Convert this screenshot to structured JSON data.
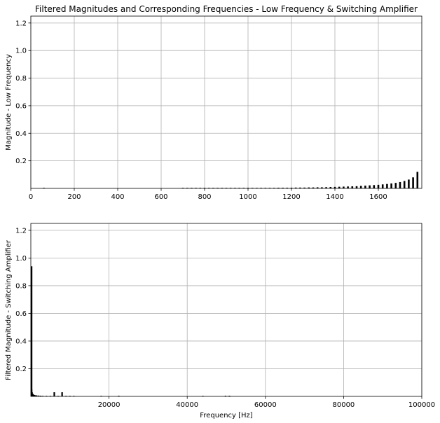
{
  "chart_data": [
    {
      "type": "bar",
      "title": "Filtered Magnitudes and Corresponding Frequencies - Low Frequency & Switching Amplifier",
      "xlabel": "",
      "ylabel": "Magnitude - Low Frequency",
      "xlim": [
        0,
        1800
      ],
      "ylim": [
        0,
        1.25
      ],
      "xticks": [
        0,
        200,
        400,
        600,
        800,
        1000,
        1200,
        1400,
        1600
      ],
      "xtick_labels": [
        "0",
        "200",
        "400",
        "600",
        "800",
        "1000",
        "1200",
        "1400",
        "1600"
      ],
      "yticks": [
        0.2,
        0.4,
        0.6,
        0.8,
        1.0,
        1.2
      ],
      "ytick_labels": [
        "0.2",
        "0.4",
        "0.6",
        "0.8",
        "1.0",
        "1.2"
      ],
      "grid": true,
      "color": "#000000",
      "x": [
        60,
        700,
        720,
        740,
        760,
        780,
        800,
        820,
        840,
        860,
        880,
        900,
        920,
        940,
        960,
        980,
        1000,
        1020,
        1040,
        1060,
        1080,
        1100,
        1120,
        1140,
        1160,
        1180,
        1200,
        1220,
        1240,
        1260,
        1280,
        1300,
        1320,
        1340,
        1360,
        1380,
        1400,
        1420,
        1440,
        1460,
        1480,
        1500,
        1520,
        1540,
        1560,
        1580,
        1600,
        1620,
        1640,
        1660,
        1680,
        1700,
        1720,
        1740,
        1760,
        1780
      ],
      "values": [
        0.002,
        0.002,
        0.002,
        0.002,
        0.002,
        0.002,
        0.002,
        0.002,
        0.002,
        0.002,
        0.002,
        0.002,
        0.002,
        0.002,
        0.002,
        0.002,
        0.003,
        0.003,
        0.003,
        0.003,
        0.003,
        0.003,
        0.004,
        0.005,
        0.005,
        0.005,
        0.005,
        0.006,
        0.006,
        0.006,
        0.007,
        0.007,
        0.008,
        0.008,
        0.009,
        0.01,
        0.011,
        0.012,
        0.013,
        0.014,
        0.015,
        0.016,
        0.018,
        0.02,
        0.022,
        0.024,
        0.026,
        0.029,
        0.032,
        0.036,
        0.04,
        0.046,
        0.054,
        0.064,
        0.08,
        0.12
      ]
    },
    {
      "type": "bar",
      "title": "",
      "xlabel": "Frequency [Hz]",
      "ylabel": "Filtered Magnitude - Switching Amplifier",
      "xlim": [
        0,
        100000
      ],
      "ylim": [
        0,
        1.25
      ],
      "xticks": [
        20000,
        40000,
        60000,
        80000,
        100000
      ],
      "xtick_labels": [
        "20000",
        "40000",
        "60000",
        "80000",
        "100000"
      ],
      "yticks": [
        0.2,
        0.4,
        0.6,
        0.8,
        1.0,
        1.2
      ],
      "ytick_labels": [
        "0.2",
        "0.4",
        "0.6",
        "0.8",
        "1.0",
        "1.2"
      ],
      "grid": true,
      "color": "#000000",
      "x": [
        60,
        180,
        300,
        420,
        540,
        700,
        900,
        1200,
        1500,
        2000,
        2500,
        3000,
        4000,
        5000,
        6000,
        7000,
        8000,
        9000,
        10000,
        11000,
        18000,
        22500,
        44000,
        49800,
        50800
      ],
      "values": [
        0.94,
        0.05,
        0.03,
        0.02,
        0.015,
        0.012,
        0.01,
        0.008,
        0.007,
        0.006,
        0.005,
        0.004,
        0.004,
        0.003,
        0.03,
        0.003,
        0.03,
        0.003,
        0.003,
        0.002,
        0.004,
        0.005,
        0.002,
        0.005,
        0.005
      ]
    }
  ]
}
